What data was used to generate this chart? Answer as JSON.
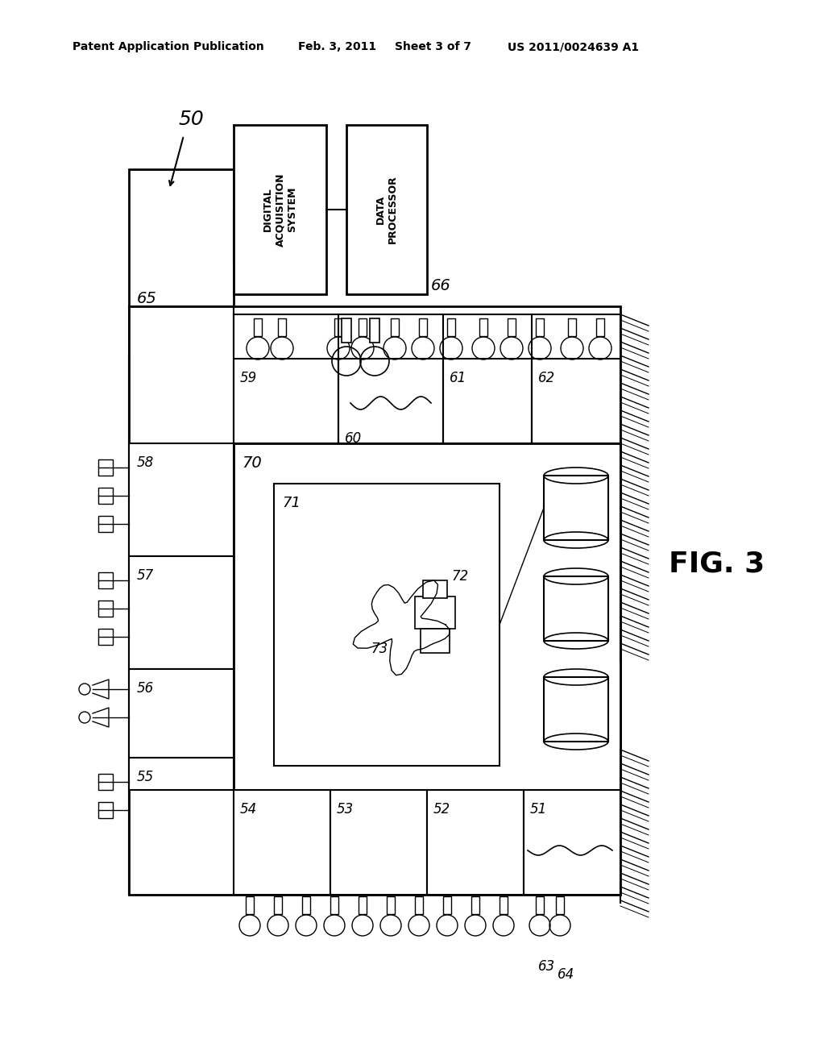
{
  "bg_color": "#ffffff",
  "header_text": "Patent Application Publication",
  "header_date": "Feb. 3, 2011",
  "header_sheet": "Sheet 3 of 7",
  "header_patent": "US 2011/0024639 A1",
  "fig_label": "FIG. 3",
  "label_50": "50",
  "label_65": "65",
  "label_66": "66",
  "label_51": "51",
  "label_52": "52",
  "label_53": "53",
  "label_54": "54",
  "label_55": "55",
  "label_56": "56",
  "label_57": "57",
  "label_58": "58",
  "label_59": "59",
  "label_60": "60",
  "label_61": "61",
  "label_62": "62",
  "label_63": "63",
  "label_64": "64",
  "label_70": "70",
  "label_71": "71",
  "label_72": "72",
  "label_73": "73",
  "das_text": "DIGITAL\nACQUISITION\nSYSTEM",
  "dp_text": "DATA\nPROCESSOR"
}
